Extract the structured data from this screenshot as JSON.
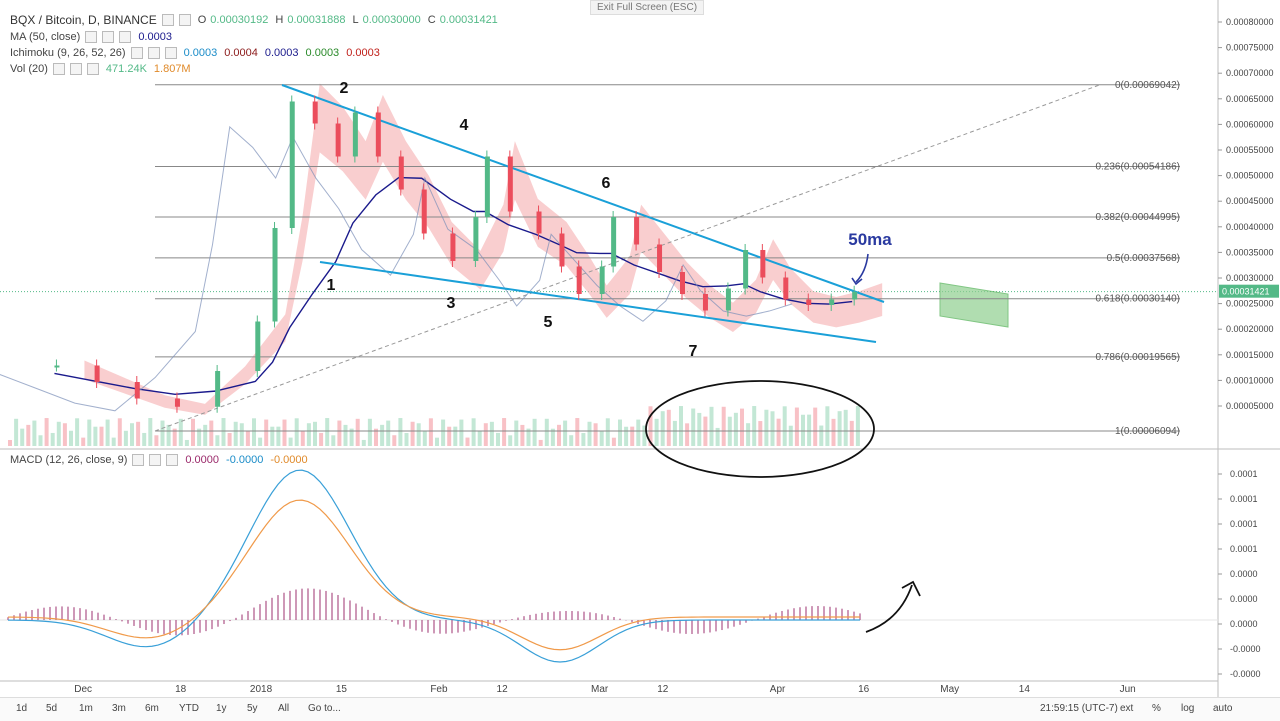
{
  "exit_fullscreen": "Exit Full Screen (ESC)",
  "legend": {
    "symbol": "BQX / Bitcoin, D, BINANCE",
    "ohlc": {
      "o": "O",
      "ov": "0.00030192",
      "h": "H",
      "hv": "0.00031888",
      "l": "L",
      "lv": "0.00030000",
      "c": "C",
      "cv": "0.00031421"
    },
    "ma": "MA (50, close)",
    "ma_val": "0.0003",
    "ichimoku": "Ichimoku (9, 26, 52, 26)",
    "ich_vals": [
      "0.0003",
      "0.0004",
      "0.0003",
      "0.0003",
      "0.0003"
    ],
    "vol": "Vol (20)",
    "vol_vals": [
      "471.24K",
      "1.807M"
    ],
    "macd": "MACD (12, 26, close, 9)",
    "macd_vals": [
      "0.0000",
      "-0.0000",
      "-0.0000"
    ]
  },
  "colors": {
    "up": "#53b987",
    "down": "#eb4d5c",
    "trend": "#1aa0d8",
    "ma50": "#1a1a8c",
    "fib": "#888888",
    "cloud_green": "#8fcf8f",
    "cloud_red": "#f4a6a8",
    "macd": "#3aa0d8",
    "signal": "#f09a4a",
    "hist": "#9b2a6b"
  },
  "chart_data": {
    "type": "candlestick",
    "title": "BQX / Bitcoin, D, BINANCE",
    "last_price": "0.00031421",
    "price_axis_ticks": [
      "0.00080000",
      "0.00075000",
      "0.00070000",
      "0.00065000",
      "0.00060000",
      "0.00055000",
      "0.00050000",
      "0.00045000",
      "0.00040000",
      "0.00035000",
      "0.00030000",
      "0.00025000",
      "0.00020000",
      "0.00015000",
      "0.00010000",
      "0.00005000"
    ],
    "macd_axis_ticks": [
      "0.0001",
      "0.0001",
      "0.0001",
      "0.0001",
      "0.0000",
      "0.0000",
      "0.0000",
      "-0.0000",
      "-0.0000"
    ],
    "time_axis_labels": [
      "Dec",
      "18",
      "2018",
      "15",
      "Feb",
      "12",
      "Mar",
      "12",
      "Apr",
      "16",
      "May",
      "14",
      "Jun"
    ],
    "time_label_dates": [
      "2017-12-01",
      "2017-12-18",
      "2018-01-01",
      "2018-01-15",
      "2018-02-01",
      "2018-02-12",
      "2018-03-01",
      "2018-03-12",
      "2018-04-01",
      "2018-04-16",
      "2018-05-01",
      "2018-05-14",
      "2018-06-01"
    ],
    "fib_levels": [
      {
        "label": "0(0.00069042)",
        "value": 0.00069042
      },
      {
        "label": "0.236(0.00054186)",
        "value": 0.00054186
      },
      {
        "label": "0.382(0.00044995)",
        "value": 0.00044995
      },
      {
        "label": "0.5(0.00037568)",
        "value": 0.00037568
      },
      {
        "label": "0.618(0.00030140)",
        "value": 0.0003014
      },
      {
        "label": "0.786(0.00019565)",
        "value": 0.00019565
      },
      {
        "label": "1(0.00006094)",
        "value": 6.094e-05
      }
    ],
    "wave_labels": [
      "1",
      "2",
      "3",
      "4",
      "5",
      "6",
      "7"
    ],
    "annotation": "50ma",
    "close_series": [
      {
        "x": "2017-11-26",
        "y": 0.00018
      },
      {
        "x": "2017-12-03",
        "y": 0.00015
      },
      {
        "x": "2017-12-10",
        "y": 0.00012
      },
      {
        "x": "2017-12-17",
        "y": 0.000105
      },
      {
        "x": "2017-12-24",
        "y": 0.00017
      },
      {
        "x": "2017-12-31",
        "y": 0.00026
      },
      {
        "x": "2018-01-03",
        "y": 0.00043
      },
      {
        "x": "2018-01-06",
        "y": 0.00066
      },
      {
        "x": "2018-01-10",
        "y": 0.00062
      },
      {
        "x": "2018-01-14",
        "y": 0.00056
      },
      {
        "x": "2018-01-17",
        "y": 0.00064
      },
      {
        "x": "2018-01-21",
        "y": 0.00056
      },
      {
        "x": "2018-01-25",
        "y": 0.0005
      },
      {
        "x": "2018-01-29",
        "y": 0.00042
      },
      {
        "x": "2018-02-03",
        "y": 0.00037
      },
      {
        "x": "2018-02-07",
        "y": 0.00045
      },
      {
        "x": "2018-02-09",
        "y": 0.00056
      },
      {
        "x": "2018-02-13",
        "y": 0.00046
      },
      {
        "x": "2018-02-18",
        "y": 0.00042
      },
      {
        "x": "2018-02-22",
        "y": 0.00036
      },
      {
        "x": "2018-02-25",
        "y": 0.00031
      },
      {
        "x": "2018-03-01",
        "y": 0.00036
      },
      {
        "x": "2018-03-03",
        "y": 0.00045
      },
      {
        "x": "2018-03-07",
        "y": 0.0004
      },
      {
        "x": "2018-03-11",
        "y": 0.00035
      },
      {
        "x": "2018-03-15",
        "y": 0.00031
      },
      {
        "x": "2018-03-19",
        "y": 0.00028
      },
      {
        "x": "2018-03-23",
        "y": 0.00032
      },
      {
        "x": "2018-03-26",
        "y": 0.00039
      },
      {
        "x": "2018-03-29",
        "y": 0.00034
      },
      {
        "x": "2018-04-02",
        "y": 0.0003
      },
      {
        "x": "2018-04-06",
        "y": 0.00029
      },
      {
        "x": "2018-04-10",
        "y": 0.0003
      },
      {
        "x": "2018-04-14",
        "y": 0.000314
      }
    ]
  },
  "bottom_bar": {
    "ranges": [
      "1d",
      "5d",
      "1m",
      "3m",
      "6m",
      "YTD",
      "1y",
      "5y",
      "All"
    ],
    "goto": "Go to...",
    "time": "21:59:15 (UTC-7)",
    "opts": [
      "ext",
      "%",
      "log",
      "auto"
    ]
  }
}
